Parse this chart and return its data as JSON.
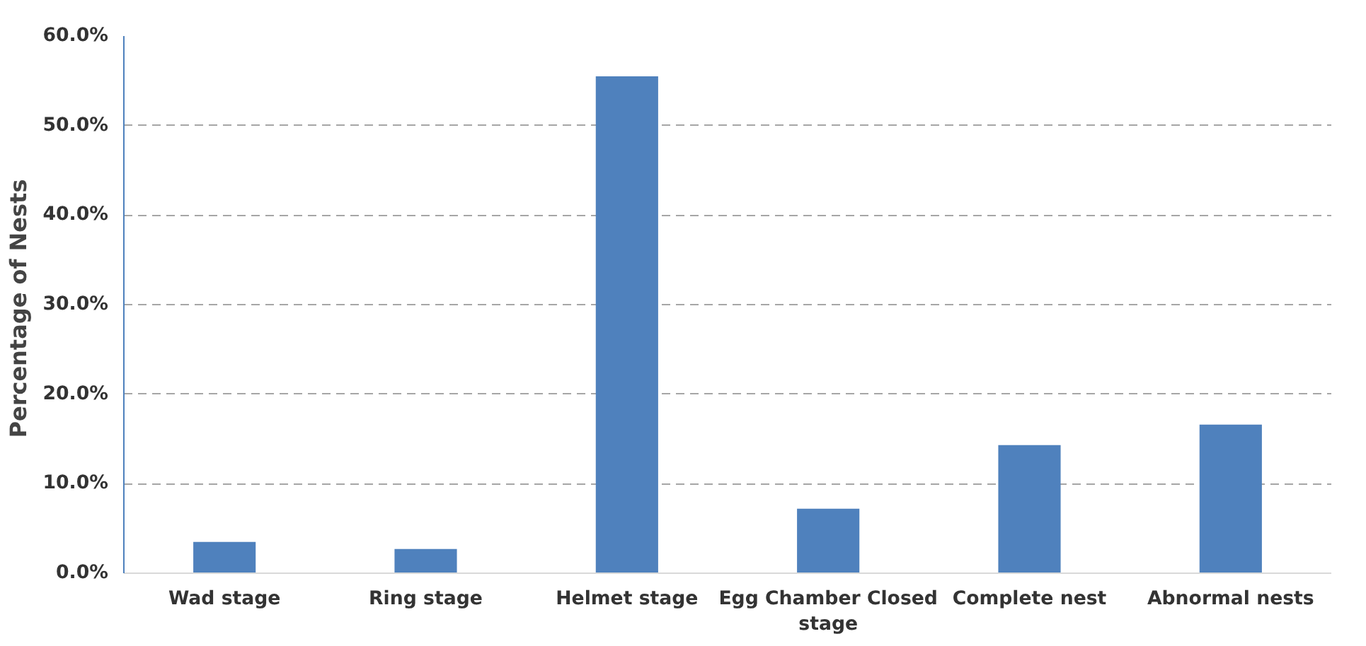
{
  "chart_data": {
    "type": "bar",
    "ylabel": "Percentage of  Nests",
    "categories": [
      "Wad stage",
      "Ring stage",
      "Helmet stage",
      "Egg Chamber Closed stage",
      "Complete nest",
      "Abnormal nests"
    ],
    "values": [
      3.5,
      2.7,
      55.5,
      7.2,
      14.3,
      16.6
    ],
    "color": "#4f81bd",
    "ylim": [
      0,
      60
    ],
    "yticks": [
      {
        "value": 0,
        "label": "0.0%"
      },
      {
        "value": 10,
        "label": "10.0%"
      },
      {
        "value": 20,
        "label": "20.0%"
      },
      {
        "value": 30,
        "label": "30.0%"
      },
      {
        "value": 40,
        "label": "40.0%"
      },
      {
        "value": 50,
        "label": "50.0%"
      },
      {
        "value": 60,
        "label": "60.0%"
      }
    ],
    "grid": "y"
  }
}
